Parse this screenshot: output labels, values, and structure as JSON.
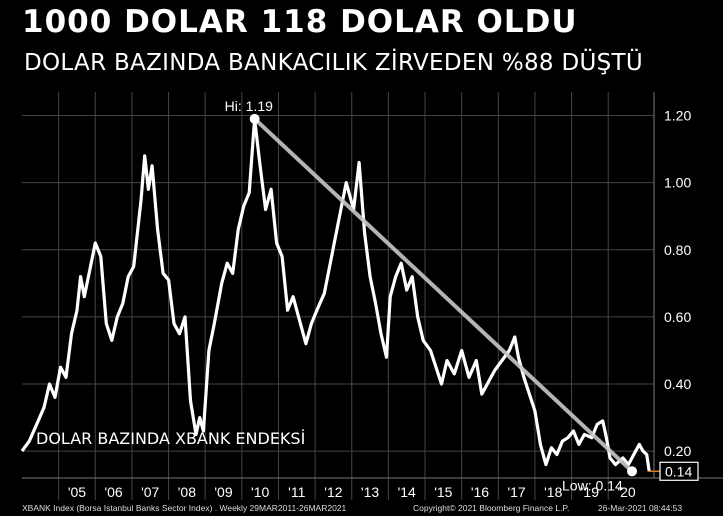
{
  "header": {
    "title": "1000 DOLAR 118 DOLAR OLDU",
    "subtitle": "DOLAR BAZINDA BANKACILIK ZİRVEDEN %88 DÜŞTÜ"
  },
  "chart_data": {
    "type": "line",
    "series_label": "DOLAR BAZINDA XBANK ENDEKSİ",
    "ylim": [
      0.12,
      1.27
    ],
    "yticks": [
      "0.20",
      "0.40",
      "0.60",
      "0.80",
      "1.00",
      "1.20"
    ],
    "xtick_labels": [
      "'05",
      "'06",
      "'07",
      "'08",
      "'09",
      "'10",
      "'11",
      "'12",
      "'13",
      "'14",
      "'15",
      "'16",
      "'17",
      "'18",
      "'19",
      "'20"
    ],
    "xlim": [
      2004.0,
      2021.25
    ],
    "hi": {
      "label": "Hi: 1.19",
      "x": 2010.35,
      "y": 1.19
    },
    "low": {
      "label": "Low: 0.14",
      "x": 2020.65,
      "y": 0.14
    },
    "last_value": "0.14",
    "series": [
      {
        "values": [
          [
            2004.0,
            0.2
          ],
          [
            2004.2,
            0.23
          ],
          [
            2004.4,
            0.28
          ],
          [
            2004.6,
            0.33
          ],
          [
            2004.75,
            0.4
          ],
          [
            2004.9,
            0.36
          ],
          [
            2005.05,
            0.45
          ],
          [
            2005.2,
            0.42
          ],
          [
            2005.35,
            0.55
          ],
          [
            2005.5,
            0.62
          ],
          [
            2005.6,
            0.72
          ],
          [
            2005.7,
            0.66
          ],
          [
            2005.85,
            0.74
          ],
          [
            2006.0,
            0.82
          ],
          [
            2006.15,
            0.78
          ],
          [
            2006.3,
            0.58
          ],
          [
            2006.45,
            0.53
          ],
          [
            2006.6,
            0.6
          ],
          [
            2006.75,
            0.64
          ],
          [
            2006.9,
            0.72
          ],
          [
            2007.05,
            0.75
          ],
          [
            2007.25,
            0.95
          ],
          [
            2007.35,
            1.08
          ],
          [
            2007.45,
            0.98
          ],
          [
            2007.55,
            1.05
          ],
          [
            2007.7,
            0.86
          ],
          [
            2007.85,
            0.73
          ],
          [
            2008.0,
            0.71
          ],
          [
            2008.15,
            0.58
          ],
          [
            2008.3,
            0.55
          ],
          [
            2008.45,
            0.6
          ],
          [
            2008.6,
            0.35
          ],
          [
            2008.75,
            0.25
          ],
          [
            2008.85,
            0.3
          ],
          [
            2008.95,
            0.26
          ],
          [
            2009.1,
            0.5
          ],
          [
            2009.25,
            0.58
          ],
          [
            2009.45,
            0.7
          ],
          [
            2009.6,
            0.76
          ],
          [
            2009.75,
            0.73
          ],
          [
            2009.9,
            0.86
          ],
          [
            2010.05,
            0.93
          ],
          [
            2010.2,
            0.97
          ],
          [
            2010.35,
            1.19
          ],
          [
            2010.5,
            1.05
          ],
          [
            2010.65,
            0.92
          ],
          [
            2010.8,
            0.98
          ],
          [
            2010.95,
            0.82
          ],
          [
            2011.1,
            0.78
          ],
          [
            2011.25,
            0.62
          ],
          [
            2011.4,
            0.66
          ],
          [
            2011.6,
            0.58
          ],
          [
            2011.75,
            0.52
          ],
          [
            2011.9,
            0.58
          ],
          [
            2012.05,
            0.62
          ],
          [
            2012.25,
            0.67
          ],
          [
            2012.45,
            0.78
          ],
          [
            2012.65,
            0.89
          ],
          [
            2012.85,
            1.0
          ],
          [
            2013.05,
            0.92
          ],
          [
            2013.2,
            1.06
          ],
          [
            2013.35,
            0.85
          ],
          [
            2013.5,
            0.72
          ],
          [
            2013.65,
            0.64
          ],
          [
            2013.8,
            0.55
          ],
          [
            2013.95,
            0.48
          ],
          [
            2014.05,
            0.66
          ],
          [
            2014.2,
            0.72
          ],
          [
            2014.35,
            0.76
          ],
          [
            2014.5,
            0.68
          ],
          [
            2014.65,
            0.72
          ],
          [
            2014.8,
            0.6
          ],
          [
            2014.95,
            0.53
          ],
          [
            2015.15,
            0.5
          ],
          [
            2015.3,
            0.45
          ],
          [
            2015.45,
            0.4
          ],
          [
            2015.6,
            0.47
          ],
          [
            2015.8,
            0.43
          ],
          [
            2016.0,
            0.5
          ],
          [
            2016.2,
            0.42
          ],
          [
            2016.4,
            0.47
          ],
          [
            2016.55,
            0.37
          ],
          [
            2016.7,
            0.4
          ],
          [
            2016.9,
            0.44
          ],
          [
            2017.1,
            0.47
          ],
          [
            2017.3,
            0.5
          ],
          [
            2017.45,
            0.54
          ],
          [
            2017.55,
            0.48
          ],
          [
            2017.7,
            0.42
          ],
          [
            2017.85,
            0.37
          ],
          [
            2018.0,
            0.32
          ],
          [
            2018.15,
            0.22
          ],
          [
            2018.3,
            0.16
          ],
          [
            2018.45,
            0.21
          ],
          [
            2018.6,
            0.19
          ],
          [
            2018.75,
            0.23
          ],
          [
            2018.9,
            0.24
          ],
          [
            2019.05,
            0.26
          ],
          [
            2019.2,
            0.22
          ],
          [
            2019.35,
            0.25
          ],
          [
            2019.55,
            0.24
          ],
          [
            2019.7,
            0.28
          ],
          [
            2019.85,
            0.29
          ],
          [
            2019.95,
            0.24
          ],
          [
            2020.05,
            0.18
          ],
          [
            2020.2,
            0.16
          ],
          [
            2020.4,
            0.18
          ],
          [
            2020.55,
            0.16
          ],
          [
            2020.7,
            0.19
          ],
          [
            2020.85,
            0.22
          ],
          [
            2020.95,
            0.2
          ],
          [
            2021.05,
            0.19
          ],
          [
            2021.12,
            0.14
          ]
        ]
      }
    ],
    "trend_line": [
      [
        2010.35,
        1.19
      ],
      [
        2020.65,
        0.14
      ]
    ]
  },
  "footer": {
    "left": "XBANK Index (Borsa Istanbul Banks Sector Index) . Weekly 29MAR2011-26MAR2021",
    "center": "Copyright© 2021 Bloomberg Finance L.P.",
    "right": "26-Mar-2021 08:44:53"
  },
  "colors": {
    "background": "#000000",
    "line": "#ffffff",
    "trend": "#c8c8c8",
    "grid": "#444444",
    "last_value_marker": "#e07b1a"
  }
}
